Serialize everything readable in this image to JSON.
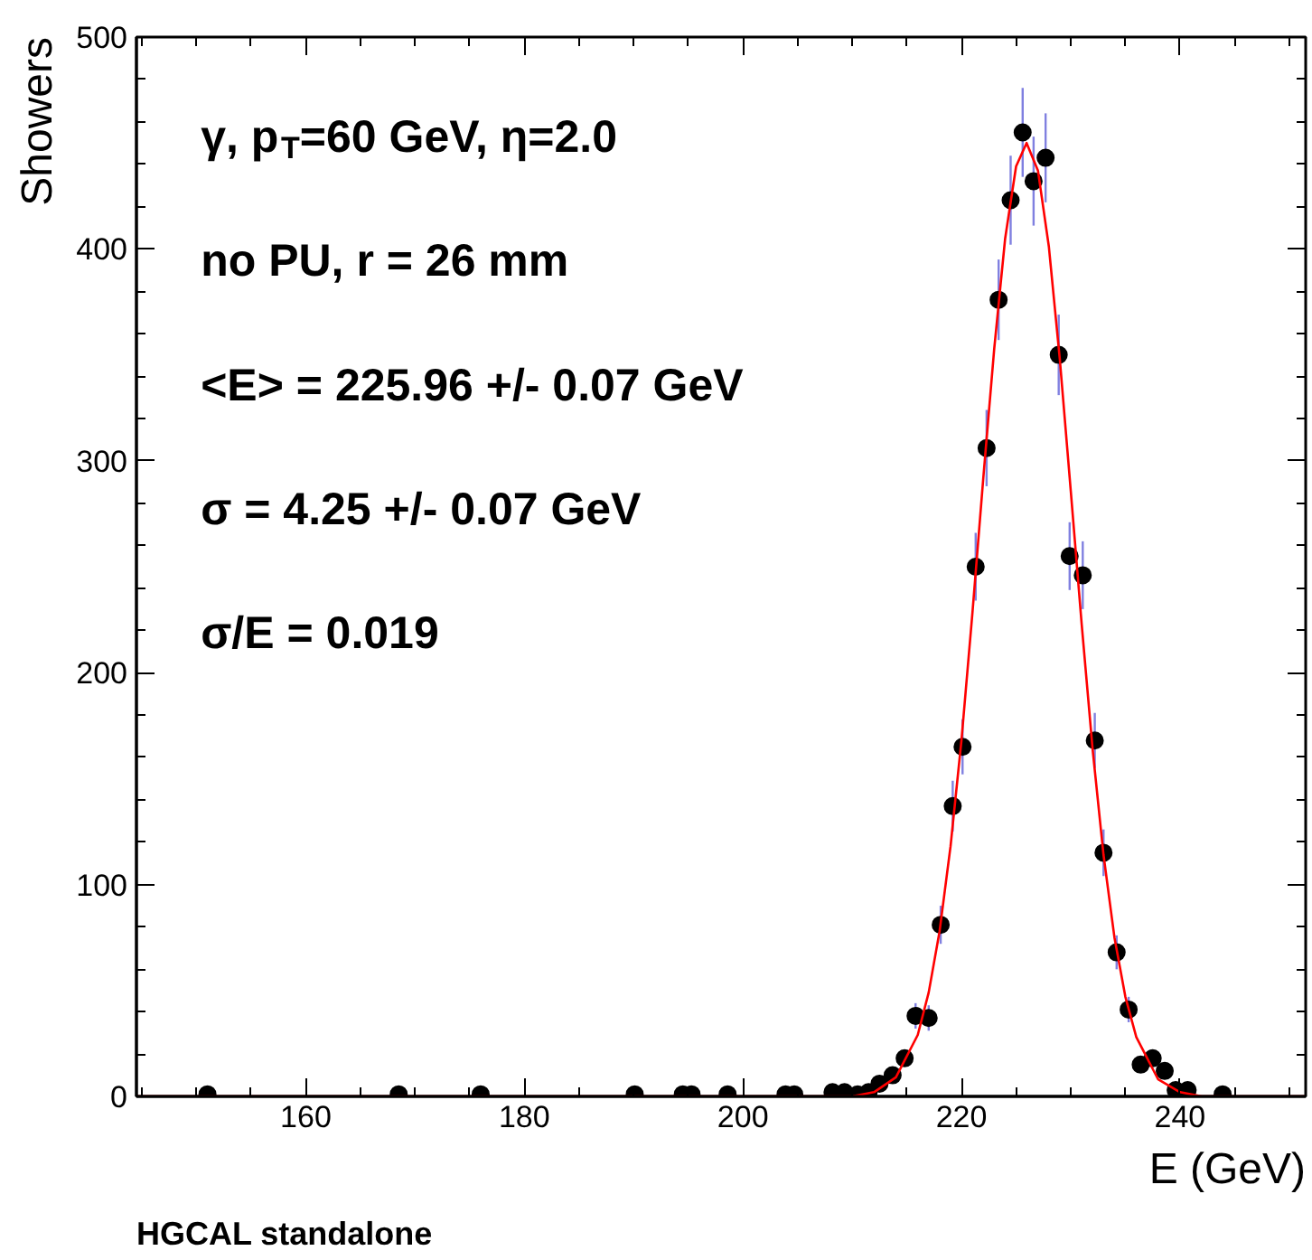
{
  "chart_data": {
    "type": "scatter",
    "xlabel": "E (GeV)",
    "ylabel": "Showers",
    "annotations": [
      "γ, p$_{T}$=60 GeV, η=2.0",
      "no PU, r =  26 mm",
      "<E> = 225.96 +/- 0.07 GeV",
      "σ = 4.25 +/- 0.07 GeV",
      "σ/E = 0.019",
      "HGCAL standalone"
    ],
    "xlim": [
      144.5,
      251.5
    ],
    "xticks": [
      160,
      180,
      200,
      220,
      240
    ],
    "ylim": [
      0,
      500
    ],
    "yticks": [
      0,
      100,
      200,
      300,
      400,
      500
    ],
    "marker": "circle",
    "series": [
      {
        "color": "#000000",
        "x": [
          151,
          168.5,
          176,
          190.1,
          194.5,
          195.3,
          198.6,
          203.9,
          204.7,
          208.2,
          209.3,
          210.5,
          211.5,
          212.5,
          213.7,
          214.8,
          215.8,
          217.0,
          218.1,
          219.2,
          220.1,
          221.3,
          222.3,
          223.4,
          224.5,
          225.6,
          226.6,
          227.7,
          228.9,
          229.9,
          231.1,
          232.2,
          233.0,
          234.2,
          235.3,
          236.4,
          237.5,
          238.6,
          239.6,
          240.7,
          243.9
        ],
        "values": [
          1,
          1,
          1,
          1,
          1,
          1,
          1,
          1,
          1,
          2,
          2,
          1,
          2,
          6,
          10,
          18,
          38,
          37,
          81,
          137,
          165,
          250,
          306,
          376,
          423,
          455,
          432,
          443,
          350,
          255,
          246,
          168,
          115,
          68,
          41,
          15,
          18,
          12,
          3,
          3,
          1
        ],
        "errors": [
          null,
          null,
          null,
          null,
          null,
          null,
          null,
          null,
          null,
          null,
          null,
          null,
          null,
          null,
          null,
          null,
          6,
          6,
          9,
          12,
          13,
          16,
          18,
          19,
          21,
          21,
          21,
          21,
          19,
          16,
          16,
          13,
          11,
          8,
          6,
          null,
          null,
          null,
          null,
          null,
          null
        ]
      },
      {
        "type": "line",
        "marker": "none",
        "color": "#ff0000",
        "x": [
          144.5,
          205,
          210,
          212,
          214,
          216,
          217,
          218,
          219,
          220,
          221,
          222,
          223,
          224,
          225,
          225.96,
          227,
          228,
          229,
          230,
          231,
          232,
          233,
          234,
          235,
          236,
          238,
          240,
          242,
          251.5
        ],
        "values": [
          0,
          0,
          0,
          2,
          9,
          29,
          49,
          78,
          118,
          168,
          228,
          292,
          353,
          405,
          439,
          450,
          437,
          401,
          348,
          286,
          223,
          164,
          114,
          75,
          47,
          28,
          8,
          2,
          0,
          0
        ]
      }
    ]
  }
}
